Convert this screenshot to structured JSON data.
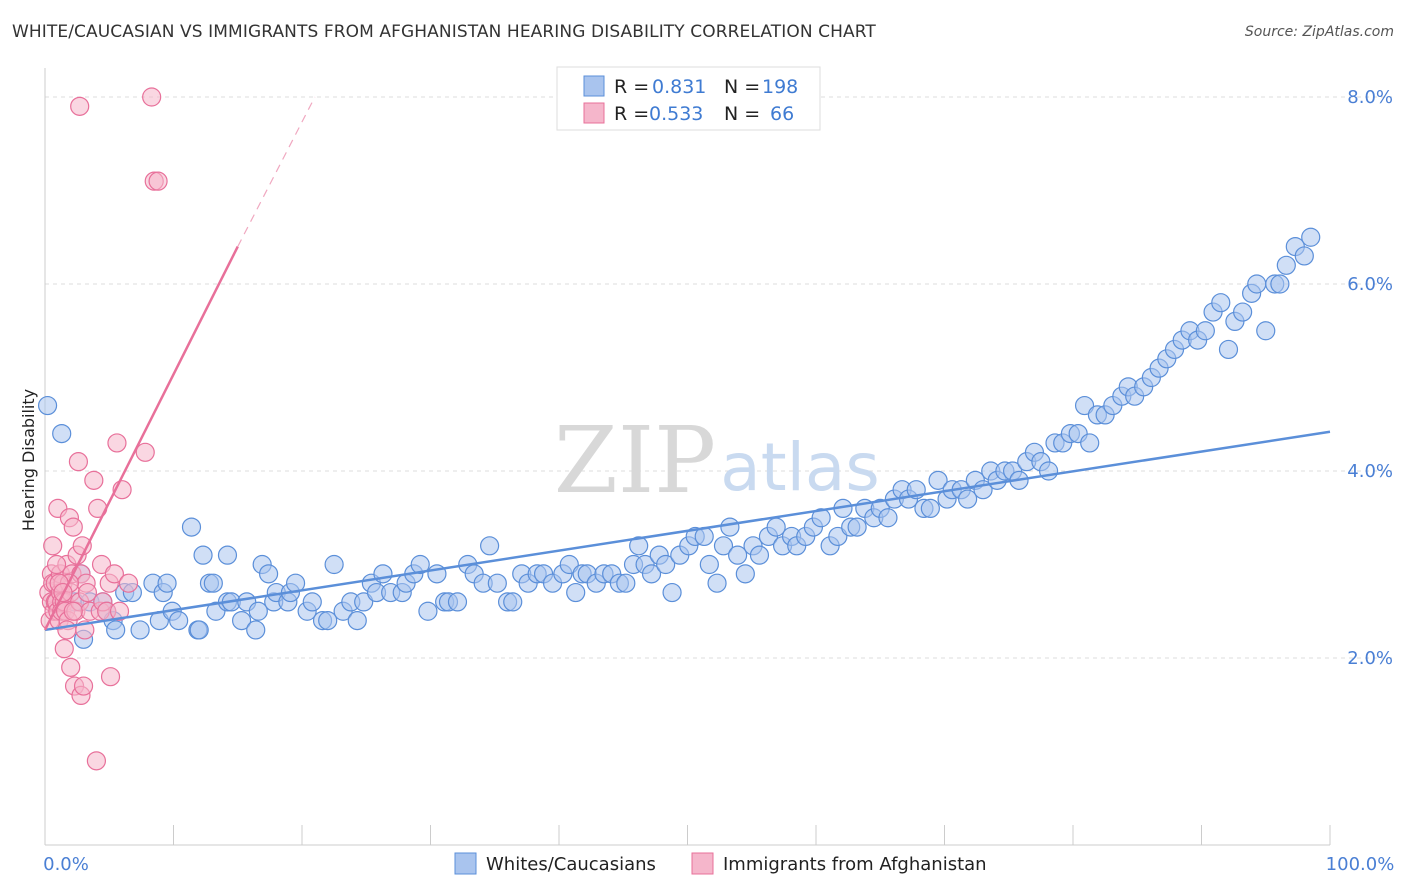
{
  "title": "WHITE/CAUCASIAN VS IMMIGRANTS FROM AFGHANISTAN HEARING DISABILITY CORRELATION CHART",
  "source": "Source: ZipAtlas.com",
  "watermark": {
    "zip": "ZIP",
    "atlas": "atlas"
  },
  "colors": {
    "blue": "#5b8fd9",
    "blue_fill": "#a9c4ee",
    "pink": "#e8709a",
    "pink_fill": "#f5b6cb",
    "tick_text": "#4a7fd4"
  },
  "legend": {
    "rows": [
      {
        "r_label": "R =",
        "r_value": "0.831",
        "n_label": "N =",
        "n_value": "198"
      },
      {
        "r_label": "R =",
        "r_value": "0.533",
        "n_label": "N =",
        "n_value": "66"
      }
    ]
  },
  "bottom_legend": {
    "series1": "Whites/Caucasians",
    "series2": "Immigrants from Afghanistan"
  },
  "chart_data": {
    "type": "scatter",
    "title": "WHITE/CAUCASIAN VS IMMIGRANTS FROM AFGHANISTAN HEARING DISABILITY CORRELATION CHART",
    "xlabel": "",
    "ylabel": "Hearing Disability",
    "xlim": [
      0,
      100
    ],
    "ylim": [
      0,
      8.2
    ],
    "x_tick_labels": [
      "0.0%",
      "100.0%"
    ],
    "y_ticks": [
      2,
      4,
      6,
      8
    ],
    "y_tick_labels": [
      "2.0%",
      "4.0%",
      "6.0%",
      "8.0%"
    ],
    "grid": true,
    "legend_position": "top-center",
    "series": [
      {
        "name": "Whites/Caucasians",
        "color": "#5b8fd9",
        "r": 0.831,
        "n": 198,
        "trend": {
          "x": [
            0,
            100
          ],
          "y": [
            2.3,
            4.42
          ]
        },
        "points": [
          [
            0.2,
            4.7
          ],
          [
            1.3,
            4.4
          ],
          [
            2.3,
            2.6
          ],
          [
            2.8,
            2.9
          ],
          [
            3,
            2.2
          ],
          [
            3.5,
            2.6
          ],
          [
            4.5,
            2.6
          ],
          [
            4.8,
            2.5
          ],
          [
            5.3,
            2.4
          ],
          [
            5.5,
            2.3
          ],
          [
            6.2,
            2.7
          ],
          [
            6.8,
            2.7
          ],
          [
            7.4,
            2.3
          ],
          [
            8.4,
            2.8
          ],
          [
            8.9,
            2.4
          ],
          [
            9.2,
            2.7
          ],
          [
            9.5,
            2.8
          ],
          [
            9.9,
            2.5
          ],
          [
            10.4,
            2.4
          ],
          [
            11.4,
            3.4
          ],
          [
            11.9,
            2.3
          ],
          [
            12,
            2.3
          ],
          [
            12.3,
            3.1
          ],
          [
            12.8,
            2.8
          ],
          [
            13.1,
            2.8
          ],
          [
            13.3,
            2.5
          ],
          [
            14.2,
            2.6
          ],
          [
            14.2,
            3.1
          ],
          [
            14.5,
            2.6
          ],
          [
            15.3,
            2.4
          ],
          [
            15.7,
            2.6
          ],
          [
            16.4,
            2.3
          ],
          [
            16.6,
            2.5
          ],
          [
            16.9,
            3.0
          ],
          [
            17.4,
            2.9
          ],
          [
            17.8,
            2.6
          ],
          [
            18,
            2.7
          ],
          [
            18.9,
            2.6
          ],
          [
            19.1,
            2.7
          ],
          [
            19.5,
            2.8
          ],
          [
            20.4,
            2.5
          ],
          [
            20.8,
            2.6
          ],
          [
            21.6,
            2.4
          ],
          [
            22,
            2.4
          ],
          [
            22.5,
            3.0
          ],
          [
            23.2,
            2.5
          ],
          [
            23.8,
            2.6
          ],
          [
            24.3,
            2.4
          ],
          [
            24.8,
            2.6
          ],
          [
            25.4,
            2.8
          ],
          [
            25.8,
            2.7
          ],
          [
            26.3,
            2.9
          ],
          [
            26.9,
            2.7
          ],
          [
            27.8,
            2.7
          ],
          [
            28.1,
            2.8
          ],
          [
            28.7,
            2.9
          ],
          [
            29.2,
            3.0
          ],
          [
            29.8,
            2.5
          ],
          [
            30.5,
            2.9
          ],
          [
            31.1,
            2.6
          ],
          [
            31.4,
            2.6
          ],
          [
            32.1,
            2.6
          ],
          [
            32.9,
            3.0
          ],
          [
            33.4,
            2.9
          ],
          [
            34.1,
            2.8
          ],
          [
            34.6,
            3.2
          ],
          [
            35.2,
            2.8
          ],
          [
            36,
            2.6
          ],
          [
            36.4,
            2.6
          ],
          [
            37.1,
            2.9
          ],
          [
            37.6,
            2.8
          ],
          [
            38.3,
            2.9
          ],
          [
            38.8,
            2.9
          ],
          [
            39.5,
            2.8
          ],
          [
            40.3,
            2.9
          ],
          [
            40.8,
            3.0
          ],
          [
            41.3,
            2.7
          ],
          [
            41.8,
            2.9
          ],
          [
            42.2,
            2.9
          ],
          [
            42.9,
            2.8
          ],
          [
            43.5,
            2.9
          ],
          [
            44.1,
            2.9
          ],
          [
            44.7,
            2.8
          ],
          [
            45.2,
            2.8
          ],
          [
            45.8,
            3.0
          ],
          [
            46.2,
            3.2
          ],
          [
            46.7,
            3.0
          ],
          [
            47.2,
            2.9
          ],
          [
            47.8,
            3.1
          ],
          [
            48.3,
            3.0
          ],
          [
            48.8,
            2.7
          ],
          [
            49.4,
            3.1
          ],
          [
            50.1,
            3.2
          ],
          [
            50.6,
            3.3
          ],
          [
            51.3,
            3.3
          ],
          [
            51.7,
            3.0
          ],
          [
            52.3,
            2.8
          ],
          [
            52.8,
            3.2
          ],
          [
            53.3,
            3.4
          ],
          [
            53.9,
            3.1
          ],
          [
            54.5,
            2.9
          ],
          [
            55.1,
            3.2
          ],
          [
            55.6,
            3.1
          ],
          [
            56.3,
            3.3
          ],
          [
            56.9,
            3.4
          ],
          [
            57.4,
            3.2
          ],
          [
            58.1,
            3.3
          ],
          [
            58.5,
            3.2
          ],
          [
            59.2,
            3.3
          ],
          [
            59.8,
            3.4
          ],
          [
            60.4,
            3.5
          ],
          [
            61.1,
            3.2
          ],
          [
            61.7,
            3.3
          ],
          [
            62.1,
            3.6
          ],
          [
            62.7,
            3.4
          ],
          [
            63.2,
            3.4
          ],
          [
            63.8,
            3.6
          ],
          [
            64.5,
            3.5
          ],
          [
            65,
            3.6
          ],
          [
            65.6,
            3.5
          ],
          [
            66.1,
            3.7
          ],
          [
            66.7,
            3.8
          ],
          [
            67.2,
            3.7
          ],
          [
            67.8,
            3.8
          ],
          [
            68.4,
            3.6
          ],
          [
            68.9,
            3.6
          ],
          [
            69.5,
            3.9
          ],
          [
            70.2,
            3.7
          ],
          [
            70.6,
            3.8
          ],
          [
            71.3,
            3.8
          ],
          [
            71.8,
            3.7
          ],
          [
            72.4,
            3.9
          ],
          [
            73,
            3.8
          ],
          [
            73.6,
            4.0
          ],
          [
            74.1,
            3.9
          ],
          [
            74.7,
            4.0
          ],
          [
            75.3,
            4.0
          ],
          [
            75.8,
            3.9
          ],
          [
            76.4,
            4.1
          ],
          [
            77,
            4.2
          ],
          [
            77.5,
            4.1
          ],
          [
            78.1,
            4.0
          ],
          [
            78.6,
            4.3
          ],
          [
            79.2,
            4.3
          ],
          [
            79.8,
            4.4
          ],
          [
            80.4,
            4.4
          ],
          [
            80.9,
            4.7
          ],
          [
            81.3,
            4.3
          ],
          [
            81.9,
            4.6
          ],
          [
            82.5,
            4.6
          ],
          [
            83.1,
            4.7
          ],
          [
            83.8,
            4.8
          ],
          [
            84.3,
            4.9
          ],
          [
            84.8,
            4.8
          ],
          [
            85.5,
            4.9
          ],
          [
            86.1,
            5.0
          ],
          [
            86.7,
            5.1
          ],
          [
            87.3,
            5.2
          ],
          [
            87.9,
            5.3
          ],
          [
            88.5,
            5.4
          ],
          [
            89.1,
            5.5
          ],
          [
            89.7,
            5.4
          ],
          [
            90.3,
            5.5
          ],
          [
            90.9,
            5.7
          ],
          [
            91.5,
            5.8
          ],
          [
            92.1,
            5.3
          ],
          [
            92.6,
            5.6
          ],
          [
            93.2,
            5.7
          ],
          [
            93.9,
            5.9
          ],
          [
            94.3,
            6.0
          ],
          [
            95.0,
            5.5
          ],
          [
            95.7,
            6.0
          ],
          [
            96.1,
            6.0
          ],
          [
            96.6,
            6.2
          ],
          [
            97.3,
            6.4
          ],
          [
            98.0,
            6.3
          ],
          [
            98.5,
            6.5
          ]
        ]
      },
      {
        "name": "Immigrants from Afghanistan",
        "color": "#e8709a",
        "r": 0.533,
        "n": 66,
        "trend": {
          "x": [
            0,
            15
          ],
          "y": [
            2.3,
            6.4
          ]
        },
        "trend_dashed": {
          "x": [
            15,
            21
          ],
          "y": [
            6.4,
            8.0
          ]
        },
        "points": [
          [
            0.3,
            2.7
          ],
          [
            0.4,
            2.4
          ],
          [
            0.5,
            2.6
          ],
          [
            0.5,
            2.9
          ],
          [
            0.6,
            3.2
          ],
          [
            0.6,
            2.8
          ],
          [
            0.7,
            2.5
          ],
          [
            0.8,
            2.6
          ],
          [
            0.8,
            2.8
          ],
          [
            0.9,
            2.6
          ],
          [
            1,
            3.6
          ],
          [
            1,
            2.5
          ],
          [
            1.1,
            2.4
          ],
          [
            1.2,
            2.7
          ],
          [
            1.2,
            2.9
          ],
          [
            1.3,
            2.6
          ],
          [
            1.3,
            2.5
          ],
          [
            1.4,
            2.8
          ],
          [
            1.5,
            2.1
          ],
          [
            1.5,
            2.6
          ],
          [
            1.6,
            2.5
          ],
          [
            1.7,
            3.0
          ],
          [
            1.8,
            2.4
          ],
          [
            1.9,
            3.5
          ],
          [
            2,
            1.9
          ],
          [
            2,
            2.7
          ],
          [
            2.1,
            2.9
          ],
          [
            2.2,
            3.4
          ],
          [
            2.3,
            1.7
          ],
          [
            2.4,
            2.5
          ],
          [
            2.5,
            3.1
          ],
          [
            2.6,
            4.1
          ],
          [
            2.7,
            2.6
          ],
          [
            2.8,
            1.6
          ],
          [
            2.8,
            2.9
          ],
          [
            2.9,
            3.2
          ],
          [
            3,
            1.7
          ],
          [
            3.1,
            2.3
          ],
          [
            3.2,
            2.8
          ],
          [
            3.3,
            2.7
          ],
          [
            3.5,
            2.5
          ],
          [
            3.8,
            3.9
          ],
          [
            4,
            0.9
          ],
          [
            4.1,
            3.6
          ],
          [
            4.3,
            2.5
          ],
          [
            4.4,
            3.0
          ],
          [
            4.5,
            2.6
          ],
          [
            4.8,
            2.5
          ],
          [
            5,
            2.8
          ],
          [
            5.1,
            1.8
          ],
          [
            5.4,
            2.9
          ],
          [
            5.6,
            4.3
          ],
          [
            5.8,
            2.5
          ],
          [
            6,
            3.8
          ],
          [
            6.5,
            2.8
          ],
          [
            7.8,
            4.2
          ],
          [
            8.3,
            8.0
          ],
          [
            8.5,
            7.1
          ],
          [
            8.8,
            7.1
          ],
          [
            2.7,
            7.9
          ],
          [
            1.7,
            2.3
          ],
          [
            2.2,
            2.5
          ],
          [
            1.9,
            2.8
          ],
          [
            0.9,
            3.0
          ],
          [
            1.1,
            2.8
          ],
          [
            1.4,
            2.7
          ]
        ]
      }
    ]
  }
}
